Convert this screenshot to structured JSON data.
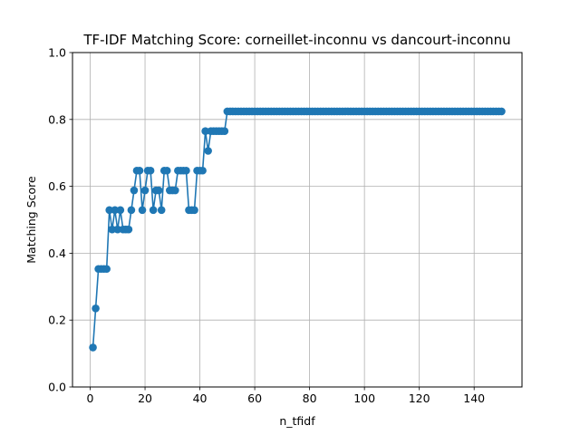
{
  "chart_data": {
    "type": "line",
    "title": "TF-IDF Matching Score: corneillet-inconnu vs dancourt-inconnu",
    "xlabel": "n_tfidf",
    "ylabel": "Matching Score",
    "xlim": [
      -6.45,
      157.45
    ],
    "ylim": [
      0.0,
      1.0
    ],
    "xticks": [
      0,
      20,
      40,
      60,
      80,
      100,
      120,
      140
    ],
    "yticks": [
      0.0,
      0.2,
      0.4,
      0.6,
      0.8,
      1.0
    ],
    "xtick_labels": [
      "0",
      "20",
      "40",
      "60",
      "80",
      "100",
      "120",
      "140"
    ],
    "ytick_labels": [
      "0.0",
      "0.2",
      "0.4",
      "0.6",
      "0.8",
      "1.0"
    ],
    "grid": true,
    "marker": "circle",
    "color": "#1f77b4",
    "series": [
      {
        "x_start": 1,
        "x_step": 1,
        "values": [
          0.118,
          0.235,
          0.353,
          0.353,
          0.353,
          0.353,
          0.529,
          0.471,
          0.529,
          0.471,
          0.529,
          0.471,
          0.471,
          0.471,
          0.529,
          0.588,
          0.647,
          0.647,
          0.529,
          0.588,
          0.647,
          0.647,
          0.529,
          0.588,
          0.588,
          0.529,
          0.647,
          0.647,
          0.588,
          0.588,
          0.588,
          0.647,
          0.647,
          0.647,
          0.647,
          0.529,
          0.529,
          0.529,
          0.647,
          0.647,
          0.647,
          0.765,
          0.706,
          0.765,
          0.765,
          0.765,
          0.765,
          0.765,
          0.765,
          0.824,
          0.824,
          0.824,
          0.824,
          0.824,
          0.824,
          0.824,
          0.824,
          0.824,
          0.824,
          0.824,
          0.824,
          0.824,
          0.824,
          0.824,
          0.824,
          0.824,
          0.824,
          0.824,
          0.824,
          0.824,
          0.824,
          0.824,
          0.824,
          0.824,
          0.824,
          0.824,
          0.824,
          0.824,
          0.824,
          0.824,
          0.824,
          0.824,
          0.824,
          0.824,
          0.824,
          0.824,
          0.824,
          0.824,
          0.824,
          0.824,
          0.824,
          0.824,
          0.824,
          0.824,
          0.824,
          0.824,
          0.824,
          0.824,
          0.824,
          0.824,
          0.824,
          0.824,
          0.824,
          0.824,
          0.824,
          0.824,
          0.824,
          0.824,
          0.824,
          0.824,
          0.824,
          0.824,
          0.824,
          0.824,
          0.824,
          0.824,
          0.824,
          0.824,
          0.824,
          0.824,
          0.824,
          0.824,
          0.824,
          0.824,
          0.824,
          0.824,
          0.824,
          0.824,
          0.824,
          0.824,
          0.824,
          0.824,
          0.824,
          0.824,
          0.824,
          0.824,
          0.824,
          0.824,
          0.824,
          0.824,
          0.824,
          0.824,
          0.824,
          0.824,
          0.824,
          0.824,
          0.824,
          0.824,
          0.824,
          0.824
        ]
      }
    ]
  }
}
